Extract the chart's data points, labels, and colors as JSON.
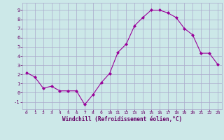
{
  "x": [
    0,
    1,
    2,
    3,
    4,
    5,
    6,
    7,
    8,
    9,
    10,
    11,
    12,
    13,
    14,
    15,
    16,
    17,
    18,
    19,
    20,
    21,
    22,
    23
  ],
  "y": [
    2.2,
    1.7,
    0.5,
    0.7,
    0.2,
    0.2,
    0.2,
    -1.3,
    -0.2,
    1.1,
    2.1,
    4.4,
    5.3,
    7.3,
    8.2,
    9.0,
    9.0,
    8.7,
    8.2,
    7.0,
    6.3,
    4.3,
    4.3,
    3.1
  ],
  "line_color": "#990099",
  "marker": "D",
  "marker_size": 2,
  "bg_color": "#cce8e8",
  "grid_color": "#aaaacc",
  "xlabel": "Windchill (Refroidissement éolien,°C)",
  "xlabel_color": "#660066",
  "tick_color": "#660066",
  "xlim": [
    -0.5,
    23.5
  ],
  "ylim": [
    -1.8,
    9.8
  ],
  "yticks": [
    -1,
    0,
    1,
    2,
    3,
    4,
    5,
    6,
    7,
    8,
    9
  ],
  "xticks": [
    0,
    1,
    2,
    3,
    4,
    5,
    6,
    7,
    8,
    9,
    10,
    11,
    12,
    13,
    14,
    15,
    16,
    17,
    18,
    19,
    20,
    21,
    22,
    23
  ]
}
